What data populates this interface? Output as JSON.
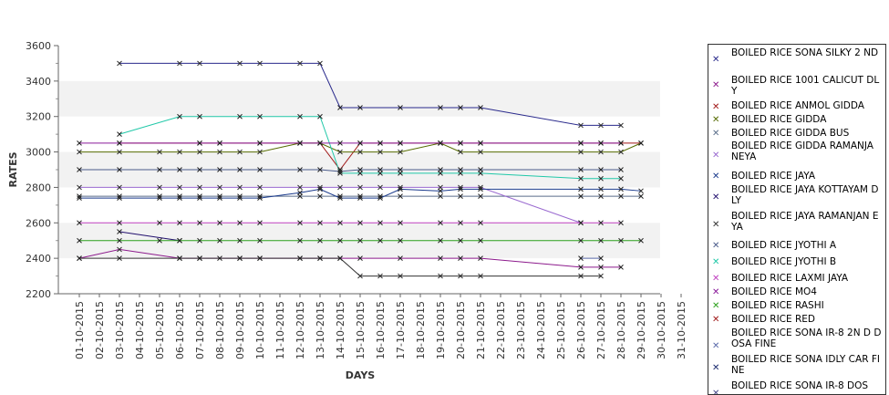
{
  "chart_data": {
    "type": "line",
    "xlabel": "DAYS",
    "ylabel": "RATES",
    "ylim": [
      2200,
      3600
    ],
    "yticks": [
      2200,
      2400,
      2600,
      2800,
      3000,
      3200,
      3400,
      3600
    ],
    "grid": "alternating horizontal bands",
    "legend_placement": "right",
    "categories": [
      "01-10-2015",
      "02-10-2015",
      "03-10-2015",
      "04-10-2015",
      "05-10-2015",
      "06-10-2015",
      "07-10-2015",
      "08-10-2015",
      "09-10-2015",
      "10-10-2015",
      "11-10-2015",
      "12-10-2015",
      "13-10-2015",
      "14-10-2015",
      "15-10-2015",
      "16-10-2015",
      "17-10-2015",
      "18-10-2015",
      "19-10-2015",
      "20-10-2015",
      "21-10-2015",
      "22-10-2015",
      "23-10-2015",
      "24-10-2015",
      "25-10-2015",
      "26-10-2015",
      "27-10-2015",
      "28-10-2015",
      "29-10-2015",
      "30-10-2015",
      "31-10-2015"
    ],
    "series": [
      {
        "name": "BOILED RICE SONA SILKY 2 ND",
        "color": "#2a2a8c",
        "values": [
          null,
          null,
          3500,
          null,
          null,
          3500,
          3500,
          null,
          3500,
          3500,
          null,
          3500,
          3500,
          3250,
          3250,
          null,
          3250,
          null,
          3250,
          3250,
          3250,
          null,
          null,
          null,
          null,
          3150,
          3150,
          3150,
          null,
          null,
          null
        ]
      },
      {
        "name": "BOILED RICE 1001 CALICUT DLY",
        "color": "#8c1a8c",
        "values": [
          2400,
          null,
          2450,
          null,
          null,
          2400,
          2400,
          null,
          2400,
          2400,
          null,
          2400,
          2400,
          2400,
          2400,
          null,
          2400,
          null,
          2400,
          2400,
          2400,
          null,
          null,
          null,
          null,
          2350,
          2350,
          2350,
          null,
          null,
          null
        ]
      },
      {
        "name": "BOILED RICE ANMOL GIDDA",
        "color": "#a01818",
        "values": [
          null,
          null,
          3050,
          null,
          null,
          null,
          3050,
          3050,
          null,
          3050,
          null,
          3050,
          3050,
          2900,
          3050,
          3050,
          3050,
          null,
          3050,
          3050,
          3050,
          null,
          null,
          null,
          null,
          3050,
          3050,
          3050,
          3050,
          null,
          null
        ]
      },
      {
        "name": "BOILED RICE GIDDA",
        "color": "#556b00",
        "values": [
          3000,
          null,
          3000,
          null,
          3000,
          3000,
          3000,
          3000,
          3000,
          3000,
          null,
          3050,
          3050,
          3000,
          3000,
          3000,
          3000,
          null,
          3050,
          3000,
          3000,
          null,
          null,
          null,
          null,
          3000,
          3000,
          3000,
          3050,
          null,
          null
        ]
      },
      {
        "name": "BOILED RICE GIDDA BUS",
        "color": "#5a6e8a",
        "values": [
          2750,
          null,
          2750,
          null,
          2750,
          2750,
          2750,
          2750,
          2750,
          2750,
          null,
          2750,
          2750,
          2750,
          2750,
          2750,
          2750,
          null,
          2750,
          2750,
          2750,
          null,
          null,
          null,
          null,
          2750,
          2750,
          2750,
          2750,
          null,
          null
        ]
      },
      {
        "name": "BOILED RICE GIDDA RAMANJA NEYA",
        "color": "#9a6ad0",
        "values": [
          2800,
          null,
          2800,
          null,
          2800,
          2800,
          2800,
          2800,
          2800,
          2800,
          null,
          2800,
          2800,
          2800,
          2800,
          2800,
          2800,
          null,
          2800,
          2800,
          2800,
          null,
          null,
          null,
          null,
          2600,
          null,
          null,
          null,
          null,
          null
        ]
      },
      {
        "name": "BOILED RICE JAYA",
        "color": "#1a3a8c",
        "values": [
          2740,
          null,
          2740,
          null,
          2740,
          2740,
          2740,
          2740,
          2740,
          2740,
          null,
          2770,
          2790,
          2740,
          2740,
          2740,
          2790,
          null,
          2780,
          2790,
          2790,
          null,
          null,
          null,
          null,
          2790,
          2790,
          2790,
          2780,
          null,
          null
        ]
      },
      {
        "name": "BOILED RICE JAYA KOTTAYAM DLY",
        "color": "#22106e",
        "values": [
          null,
          null,
          2550,
          null,
          null,
          2500,
          null,
          null,
          null,
          null,
          null,
          null,
          null,
          null,
          null,
          null,
          null,
          null,
          null,
          null,
          null,
          null,
          null,
          null,
          null,
          null,
          null,
          null,
          null,
          null,
          null
        ]
      },
      {
        "name": "BOILED RICE JAYA RAMANJAN EYA",
        "color": "#333333",
        "values": [
          2400,
          null,
          2400,
          null,
          null,
          2400,
          2400,
          2400,
          2400,
          2400,
          null,
          2400,
          2400,
          2400,
          2300,
          2300,
          2300,
          null,
          2300,
          2300,
          2300,
          null,
          null,
          null,
          null,
          2300,
          2300,
          null,
          null,
          null,
          null
        ]
      },
      {
        "name": "BOILED RICE JYOTHI A",
        "color": "#4a5a8a",
        "values": [
          2900,
          null,
          2900,
          null,
          2900,
          2900,
          2900,
          2900,
          2900,
          2900,
          null,
          2900,
          2900,
          2890,
          2900,
          2900,
          2900,
          null,
          2900,
          2900,
          2900,
          null,
          null,
          null,
          null,
          2900,
          2900,
          2900,
          null,
          null,
          null
        ]
      },
      {
        "name": "BOILED RICE JYOTHI B",
        "color": "#20c8a8",
        "values": [
          null,
          null,
          3100,
          null,
          null,
          3200,
          3200,
          null,
          3200,
          3200,
          null,
          3200,
          3200,
          2880,
          2880,
          2880,
          2880,
          null,
          2880,
          2880,
          2880,
          null,
          null,
          null,
          null,
          2850,
          2850,
          2850,
          null,
          null,
          null
        ]
      },
      {
        "name": "BOILED RICE LAXMI JAYA",
        "color": "#c040c0",
        "values": [
          2600,
          null,
          2600,
          null,
          2600,
          2600,
          2600,
          2600,
          2600,
          2600,
          null,
          2600,
          2600,
          2600,
          2600,
          2600,
          2600,
          null,
          2600,
          2600,
          2600,
          null,
          null,
          null,
          null,
          2600,
          2600,
          2600,
          null,
          null,
          null
        ]
      },
      {
        "name": "BOILED RICE MO4",
        "color": "#8a1a9a",
        "values": [
          3050,
          null,
          3050,
          null,
          null,
          null,
          3050,
          3050,
          null,
          3050,
          null,
          3050,
          3050,
          3050,
          3050,
          3050,
          3050,
          null,
          3050,
          3050,
          3050,
          null,
          null,
          null,
          null,
          3050,
          3050,
          3050,
          null,
          null,
          null
        ]
      },
      {
        "name": "BOILED RICE RASHI",
        "color": "#2aa01a",
        "values": [
          2500,
          null,
          2500,
          null,
          2500,
          2500,
          2500,
          2500,
          2500,
          2500,
          null,
          2500,
          2500,
          2500,
          2500,
          2500,
          2500,
          null,
          2500,
          2500,
          2500,
          null,
          null,
          null,
          null,
          2500,
          2500,
          2500,
          2500,
          null,
          null
        ]
      },
      {
        "name": "BOILED RICE RED",
        "color": "#a01a1a",
        "values": [
          null,
          null,
          null,
          null,
          null,
          null,
          null,
          null,
          null,
          null,
          null,
          null,
          null,
          null,
          null,
          null,
          null,
          null,
          null,
          null,
          null,
          null,
          null,
          null,
          null,
          null,
          null,
          null,
          null,
          null,
          null
        ]
      },
      {
        "name": "BOILED RICE SONA IR-8 2N D DOSA FINE",
        "color": "#5a6aaa",
        "values": [
          null,
          null,
          null,
          null,
          null,
          null,
          null,
          null,
          null,
          null,
          null,
          null,
          null,
          null,
          null,
          null,
          null,
          null,
          null,
          null,
          null,
          null,
          null,
          null,
          null,
          2400,
          2400,
          null,
          null,
          null,
          null
        ]
      },
      {
        "name": "BOILED RICE SONA IDLY CAR FINE",
        "color": "#1a2a6e",
        "values": [
          null,
          null,
          null,
          null,
          null,
          null,
          null,
          null,
          null,
          null,
          null,
          null,
          null,
          null,
          null,
          null,
          null,
          null,
          null,
          null,
          null,
          null,
          null,
          null,
          null,
          null,
          null,
          null,
          null,
          null,
          null
        ]
      },
      {
        "name": "BOILED RICE SONA IR-8 DOS",
        "color": "#4a4a8a",
        "values": [
          null,
          null,
          null,
          null,
          null,
          null,
          null,
          null,
          null,
          null,
          null,
          null,
          null,
          null,
          null,
          null,
          null,
          null,
          null,
          null,
          null,
          null,
          null,
          null,
          null,
          null,
          null,
          null,
          null,
          null,
          null
        ]
      }
    ]
  }
}
